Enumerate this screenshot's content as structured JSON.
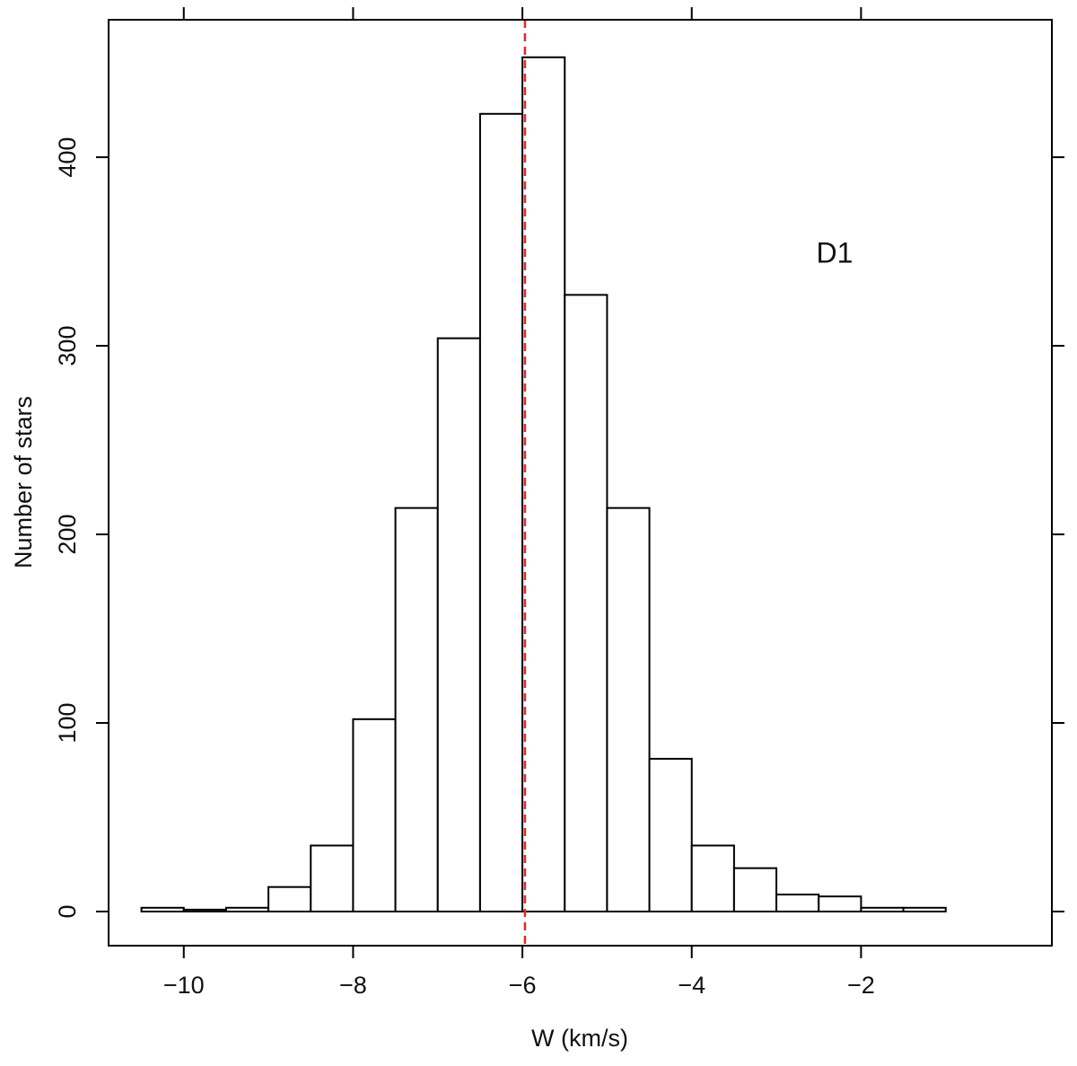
{
  "chart_data": {
    "type": "histogram",
    "xlabel": "W (km/s)",
    "ylabel": "Number of stars",
    "annotation": "D1",
    "bins": [
      -10.5,
      -10,
      -9.5,
      -9,
      -8.5,
      -8,
      -7.5,
      -7,
      -6.5,
      -6,
      -5.5,
      -5,
      -4.5,
      -4,
      -3.5,
      -3,
      -2.5,
      -2,
      -1.5,
      -1
    ],
    "values": [
      2,
      1,
      2,
      13,
      35,
      102,
      214,
      304,
      423,
      453,
      327,
      214,
      81,
      35,
      23,
      9,
      8,
      2,
      2
    ],
    "color": "#ffffff",
    "edgecolor": "#000000",
    "xlim": [
      -10.888,
      0.254
    ],
    "ylim": [
      -18.1,
      472.9
    ],
    "xticks": [
      {
        "value": -10,
        "label": "−10"
      },
      {
        "value": -8,
        "label": "−8"
      },
      {
        "value": -6,
        "label": "−6"
      },
      {
        "value": -4,
        "label": "−4"
      },
      {
        "value": -2,
        "label": "−2"
      }
    ],
    "yticks": [
      0,
      100,
      200,
      300,
      400
    ],
    "vline": -5.97,
    "vline_color": "#e8262a",
    "grid": false
  }
}
